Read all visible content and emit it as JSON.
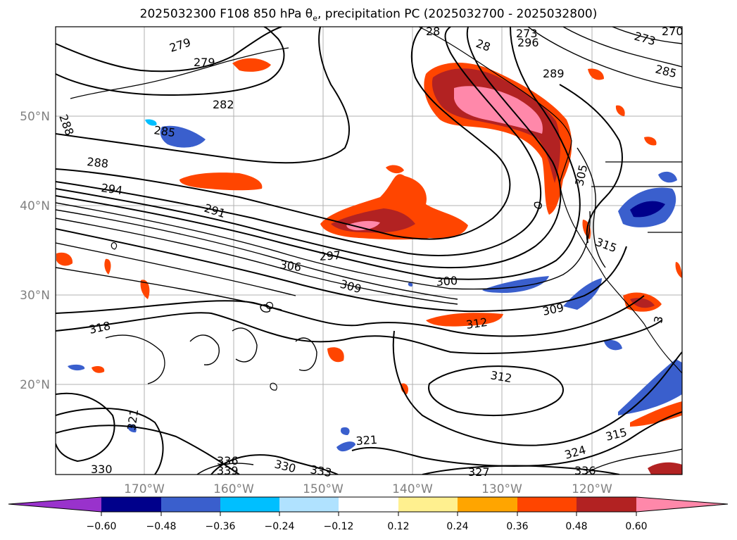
{
  "title": {
    "prefix": "2025032300 F108 850 hPa θ",
    "sub": "e",
    "suffix": ", precipitation PC (2025032700 - 2025032800)"
  },
  "map": {
    "lon_ticks": [
      "170°W",
      "160°W",
      "150°W",
      "140°W",
      "130°W",
      "120°W"
    ],
    "lat_ticks": [
      "50°N",
      "40°N",
      "30°N",
      "20°N"
    ]
  },
  "contour_labels": [
    "279",
    "279",
    "282",
    "285",
    "288",
    "288",
    "294",
    "291",
    "297",
    "306",
    "309",
    "300",
    "312",
    "309",
    "318",
    "312",
    "321",
    "321",
    "315",
    "324",
    "336",
    "339",
    "330",
    "333",
    "327",
    "330",
    "336",
    "285",
    "289",
    "273",
    "273",
    "270",
    "296",
    "28",
    "28",
    "305",
    "315",
    "3"
  ],
  "colorbar": {
    "ticks": [
      "−0.60",
      "−0.48",
      "−0.36",
      "−0.24",
      "−0.12",
      "0.12",
      "0.24",
      "0.36",
      "0.48",
      "0.60"
    ],
    "colors": [
      "#9932cc",
      "#00008b",
      "#3a5fcd",
      "#00bfff",
      "#b0e2ff",
      "#ffffff",
      "#fff08f",
      "#ffa500",
      "#ff4500",
      "#b22222",
      "#ff88aa"
    ]
  },
  "colors": {
    "neg_strong": "#3a5fcd",
    "neg_light": "#00bfff",
    "pos_orange": "#ff4500",
    "pos_red": "#b22222",
    "pos_pink": "#ff88aa",
    "pos_yellow": "#ffa500"
  }
}
